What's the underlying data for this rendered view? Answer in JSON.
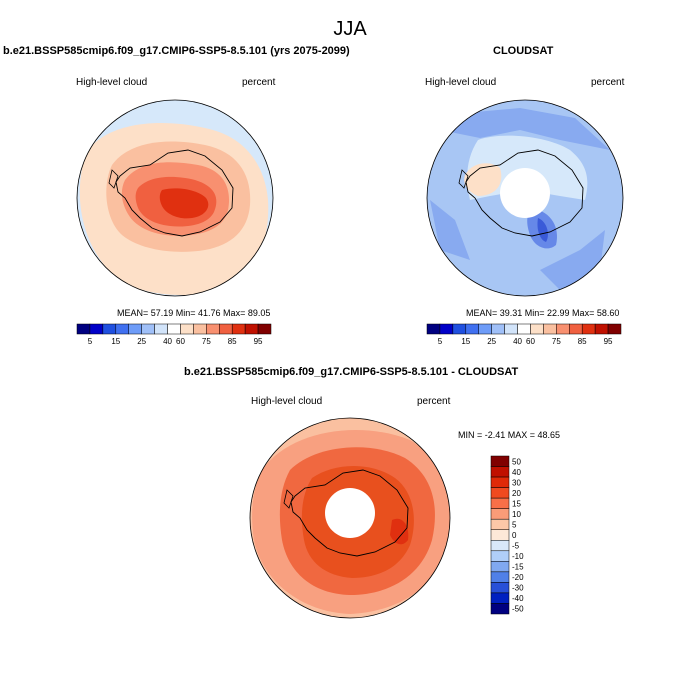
{
  "main_title": "JJA",
  "panels": [
    {
      "title": "b.e21.BSSP585cmip6.f09_g17.CMIP6-SSP5-8.5.101 (yrs 2075-2099)",
      "left_label": "High-level cloud",
      "right_label": "percent",
      "stats": "MEAN=  57.19  Min=  41.76  Max=  89.05"
    },
    {
      "title": "CLOUDSAT",
      "left_label": "High-level cloud",
      "right_label": "percent",
      "stats": "MEAN=  39.31  Min=  22.99  Max=  58.60"
    },
    {
      "title": "b.e21.BSSP585cmip6.f09_g17.CMIP6-SSP5-8.5.101 - CLOUDSAT",
      "left_label": "High-level cloud",
      "right_label": "percent",
      "stats": "MIN =  -2.41 MAX =  48.65"
    }
  ],
  "colorbar_abs": {
    "colors": [
      "#000080",
      "#0000c8",
      "#2050e0",
      "#4070f0",
      "#6e9cf8",
      "#a0c0f8",
      "#d2e4fa",
      "#ffffff",
      "#fde0c8",
      "#fac0a0",
      "#f89070",
      "#f06040",
      "#e03010",
      "#c01000",
      "#800000"
    ],
    "labels": [
      "5",
      "15",
      "25",
      "40",
      "60",
      "75",
      "85",
      "95"
    ]
  },
  "colorbar_diff": {
    "colors": [
      "#800000",
      "#c01000",
      "#e02a08",
      "#f04a20",
      "#f87048",
      "#fa9c78",
      "#fdc8a8",
      "#fde8d8",
      "#d8e8fa",
      "#b0cef8",
      "#80a8f0",
      "#5080e8",
      "#2850d8",
      "#0020c0",
      "#000080"
    ],
    "labels": [
      "50",
      "40",
      "30",
      "20",
      "15",
      "10",
      "5",
      "0",
      "-5",
      "-10",
      "-15",
      "-20",
      "-30",
      "-40",
      "-50"
    ]
  },
  "colors": {
    "outer_light_blue": "#d6e8fa",
    "pale_orange": "#fde0c8",
    "light_orange": "#fac0a0",
    "orange": "#f89070",
    "red_orange": "#f06040",
    "deep_red": "#e03010",
    "blue_1": "#a8c6f4",
    "blue_2": "#88aaf0",
    "blue_3": "#6688e8",
    "blue_4": "#3a5ad8",
    "diff_mid": "#f8a080",
    "diff_high": "#f06840",
    "diff_very_high": "#e8501e"
  }
}
